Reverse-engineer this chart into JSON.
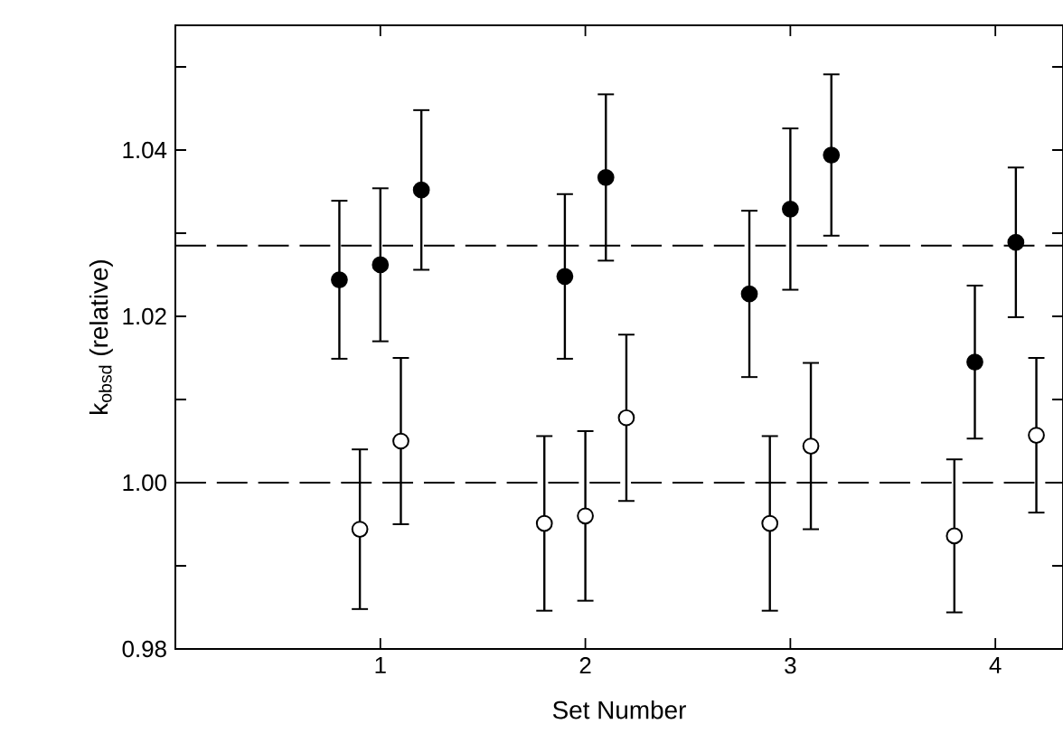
{
  "chart_data": {
    "type": "scatter",
    "xlabel": "Set Number",
    "ylabel": "k$_{obsd}$ (relative)",
    "xlim": [
      0,
      4.33
    ],
    "ylim": [
      0.98,
      1.055
    ],
    "xticks": [
      1,
      2,
      3,
      4
    ],
    "yticks": [
      {
        "value": 0.98,
        "label": "0.98"
      },
      {
        "value": 0.99,
        "label": null
      },
      {
        "value": 1.0,
        "label": "1.00"
      },
      {
        "value": 1.01,
        "label": null
      },
      {
        "value": 1.02,
        "label": "1.02"
      },
      {
        "value": 1.03,
        "label": null
      },
      {
        "value": 1.04,
        "label": "1.04"
      },
      {
        "value": 1.05,
        "label": null
      }
    ],
    "marker": "circle",
    "ref_lines": [
      {
        "axis": "y",
        "value": 1.0285,
        "line_style": "dashed"
      },
      {
        "axis": "y",
        "value": 1.0,
        "line_style": "dashed"
      }
    ],
    "series": [
      {
        "color": "#000000",
        "x": [
          0.8,
          1.0,
          1.2,
          1.9,
          2.1,
          2.8,
          3.0,
          3.2,
          3.9,
          4.1
        ],
        "values": [
          1.0244,
          1.0262,
          1.0352,
          1.0248,
          1.0367,
          1.0227,
          1.0329,
          1.0394,
          1.0145,
          1.0289
        ],
        "errors": [
          0.0095,
          0.0092,
          0.0096,
          0.0099,
          0.01,
          0.01,
          0.0097,
          0.0097,
          0.0092,
          0.009
        ]
      },
      {
        "color": "#ffffff",
        "x": [
          0.9,
          1.1,
          1.8,
          2.0,
          2.2,
          2.9,
          3.1,
          3.8,
          4.2
        ],
        "values": [
          0.9944,
          1.005,
          0.9951,
          0.996,
          1.0078,
          0.9951,
          1.0044,
          0.9936,
          1.0057
        ],
        "errors": [
          0.0096,
          0.01,
          0.0105,
          0.0102,
          0.01,
          0.0105,
          0.01,
          0.0092,
          0.0093
        ]
      }
    ]
  }
}
